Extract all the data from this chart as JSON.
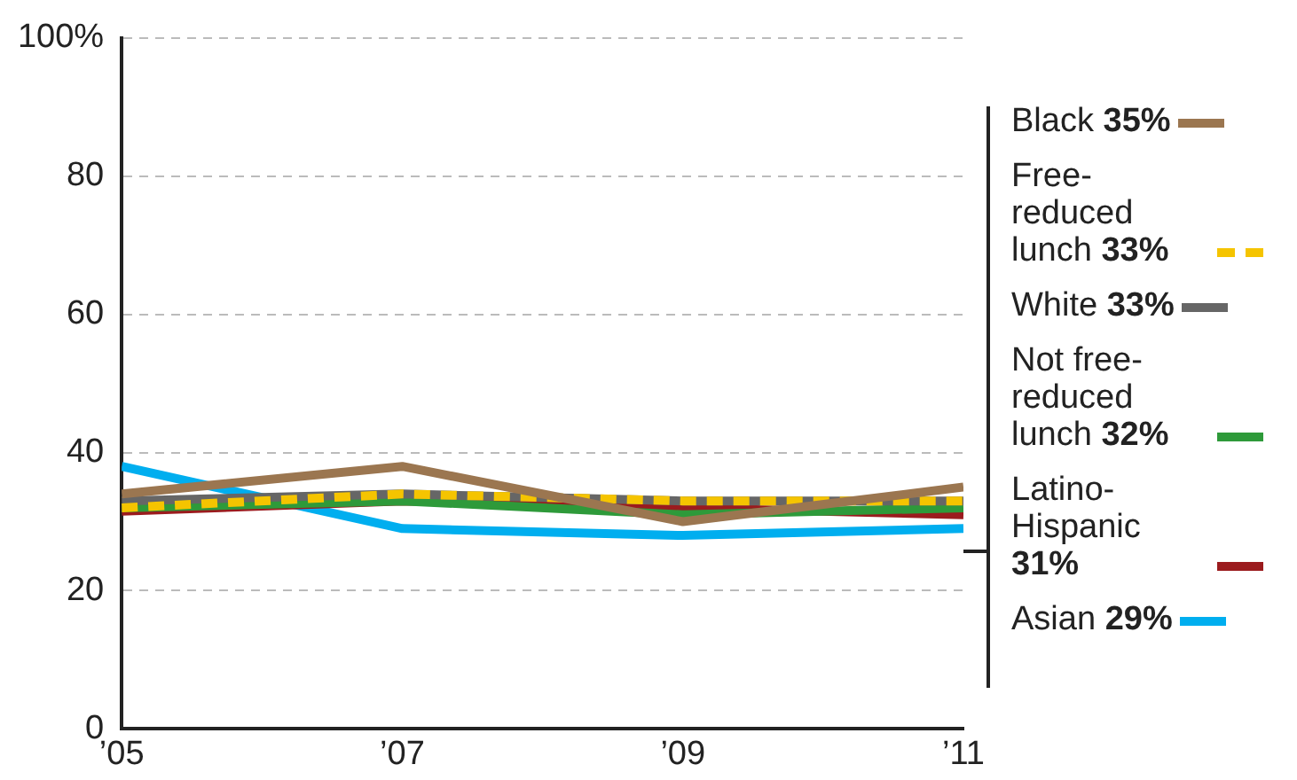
{
  "chart_data": {
    "type": "line",
    "x": [
      2005,
      2007,
      2009,
      2011
    ],
    "xlim": [
      2005,
      2011
    ],
    "xticks": [
      {
        "value": 2005,
        "label": "’05"
      },
      {
        "value": 2007,
        "label": "’07"
      },
      {
        "value": 2009,
        "label": "’09"
      },
      {
        "value": 2011,
        "label": "’11"
      }
    ],
    "ylim": [
      0,
      100
    ],
    "yticks": [
      0,
      20,
      40,
      60,
      80,
      {
        "value": 100,
        "label": "100%"
      }
    ],
    "grid": "y",
    "legend": "right",
    "marker": "none",
    "series": [
      {
        "name": "Black 35%",
        "color": "#9b7650",
        "values": [
          34,
          38,
          30,
          35
        ],
        "line_style": "solid"
      },
      {
        "name": "Free-reduced lunch 33%",
        "color": "#f5c400",
        "values": [
          32,
          34,
          33,
          33
        ],
        "line_style": "dashed"
      },
      {
        "name": "White 33%",
        "color": "#666666",
        "values": [
          33,
          34,
          33,
          33
        ],
        "line_style": "solid"
      },
      {
        "name": "Not free-reduced lunch 32%",
        "color": "#2e9a3a",
        "values": [
          32,
          33,
          31,
          32
        ],
        "line_style": "solid"
      },
      {
        "name": "Latino-Hispanic 31%",
        "color": "#9b1b1e",
        "values": [
          31.5,
          33,
          32,
          31
        ],
        "line_style": "solid"
      },
      {
        "name": "Asian 29%",
        "color": "#00aeef",
        "values": [
          38,
          29,
          28,
          29
        ],
        "line_style": "solid"
      }
    ]
  }
}
